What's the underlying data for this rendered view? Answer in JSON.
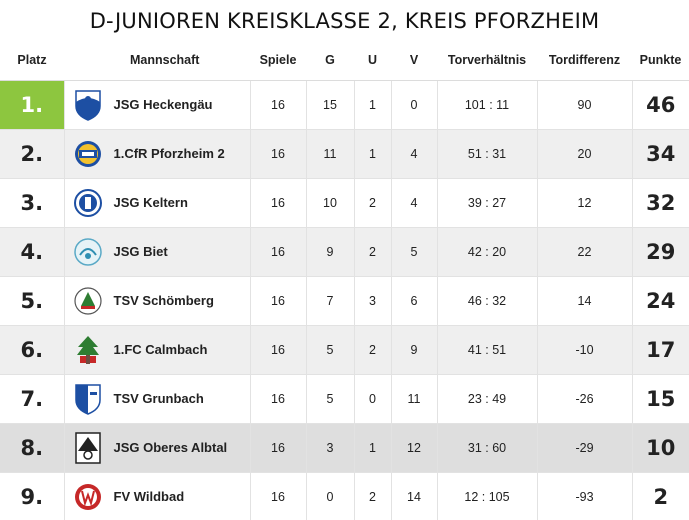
{
  "title": "D-JUNIOREN KREISKLASSE 2, KREIS PFORZHEIM",
  "headers": {
    "rank": "Platz",
    "team": "Mannschaft",
    "played": "Spiele",
    "won": "G",
    "drawn": "U",
    "lost": "V",
    "goals": "Torverhältnis",
    "diff": "Tordifferenz",
    "points": "Punkte"
  },
  "colors": {
    "leader": "#8dc63f",
    "row_alt": "#efefef",
    "row_highlight": "#dedede"
  },
  "rows": [
    {
      "rank": "1.",
      "team": "JSG Heckengäu",
      "logo": "jsg-heckengaeu-crest-icon",
      "played": "16",
      "won": "15",
      "drawn": "1",
      "lost": "0",
      "goals": "101 : 11",
      "diff": "90",
      "points": "46"
    },
    {
      "rank": "2.",
      "team": "1.CfR Pforzheim 2",
      "logo": "cfr-pforzheim-crest-icon",
      "played": "16",
      "won": "11",
      "drawn": "1",
      "lost": "4",
      "goals": "51 : 31",
      "diff": "20",
      "points": "34"
    },
    {
      "rank": "3.",
      "team": "JSG Keltern",
      "logo": "jsg-keltern-crest-icon",
      "played": "16",
      "won": "10",
      "drawn": "2",
      "lost": "4",
      "goals": "39 : 27",
      "diff": "12",
      "points": "32"
    },
    {
      "rank": "4.",
      "team": "JSG Biet",
      "logo": "jsg-biet-crest-icon",
      "played": "16",
      "won": "9",
      "drawn": "2",
      "lost": "5",
      "goals": "42 : 20",
      "diff": "22",
      "points": "29"
    },
    {
      "rank": "5.",
      "team": "TSV Schömberg",
      "logo": "tsv-schoemberg-crest-icon",
      "played": "16",
      "won": "7",
      "drawn": "3",
      "lost": "6",
      "goals": "46 : 32",
      "diff": "14",
      "points": "24"
    },
    {
      "rank": "6.",
      "team": "1.FC Calmbach",
      "logo": "fc-calmbach-crest-icon",
      "played": "16",
      "won": "5",
      "drawn": "2",
      "lost": "9",
      "goals": "41 : 51",
      "diff": "-10",
      "points": "17"
    },
    {
      "rank": "7.",
      "team": "TSV Grunbach",
      "logo": "tsv-grunbach-crest-icon",
      "played": "16",
      "won": "5",
      "drawn": "0",
      "lost": "11",
      "goals": "23 : 49",
      "diff": "-26",
      "points": "15"
    },
    {
      "rank": "8.",
      "team": "JSG Oberes Albtal",
      "logo": "jsg-oberes-albtal-crest-icon",
      "played": "16",
      "won": "3",
      "drawn": "1",
      "lost": "12",
      "goals": "31 : 60",
      "diff": "-29",
      "points": "10"
    },
    {
      "rank": "9.",
      "team": "FV Wildbad",
      "logo": "fv-wildbad-crest-icon",
      "played": "16",
      "won": "0",
      "drawn": "2",
      "lost": "14",
      "goals": "12 : 105",
      "diff": "-93",
      "points": "2"
    }
  ]
}
